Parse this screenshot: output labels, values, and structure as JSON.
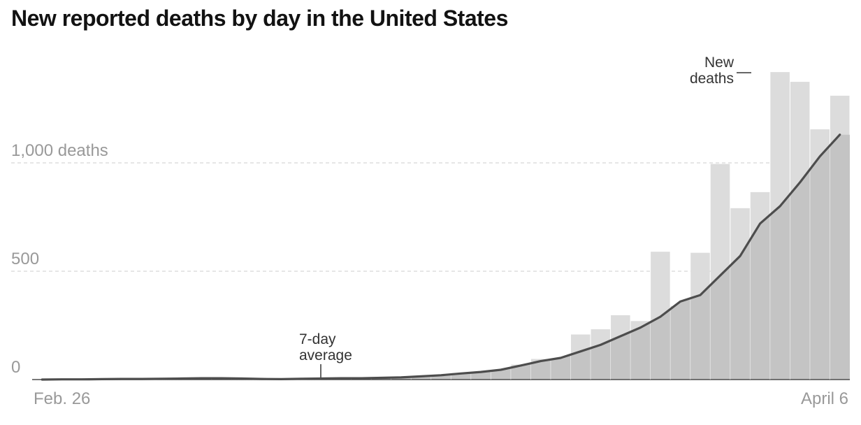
{
  "title": "New reported deaths by day in the United States",
  "colors": {
    "bar_above": "#dcdcdc",
    "area": "#c4c4c4",
    "line": "#4d4d4d",
    "grid": "#d7d7d7",
    "tick": "#999999"
  },
  "chart_data": {
    "type": "bar",
    "title": "New reported deaths by day in the United States",
    "x_start_label": "Feb. 26",
    "x_end_label": "April 6",
    "y_tick_labels": [
      "0",
      "500",
      "1,000 deaths"
    ],
    "y_ticks": [
      0,
      500,
      1000
    ],
    "ylim": [
      0,
      1400
    ],
    "grid": true,
    "annotations": {
      "bars_label": [
        "New",
        "deaths"
      ],
      "line_label": [
        "7-day",
        "average"
      ]
    },
    "series": [
      {
        "values": [
          0,
          0,
          0,
          0,
          0,
          0,
          0,
          0,
          0,
          0,
          0,
          0,
          0,
          0,
          0,
          0,
          0,
          0,
          0,
          17,
          6,
          30,
          37,
          33,
          69,
          95,
          97,
          208,
          232,
          297,
          270,
          590,
          340,
          585,
          995,
          791,
          865,
          1419,
          1374,
          1155,
          1310
        ]
      },
      {
        "values": [
          0,
          1,
          1,
          2,
          3,
          3,
          4,
          5,
          6,
          6,
          5,
          3,
          2,
          4,
          5,
          6,
          6,
          8,
          10,
          15,
          20,
          28,
          35,
          45,
          65,
          85,
          100,
          130,
          160,
          200,
          240,
          290,
          360,
          390,
          480,
          570,
          720,
          800,
          910,
          1030,
          1130
        ]
      }
    ]
  }
}
